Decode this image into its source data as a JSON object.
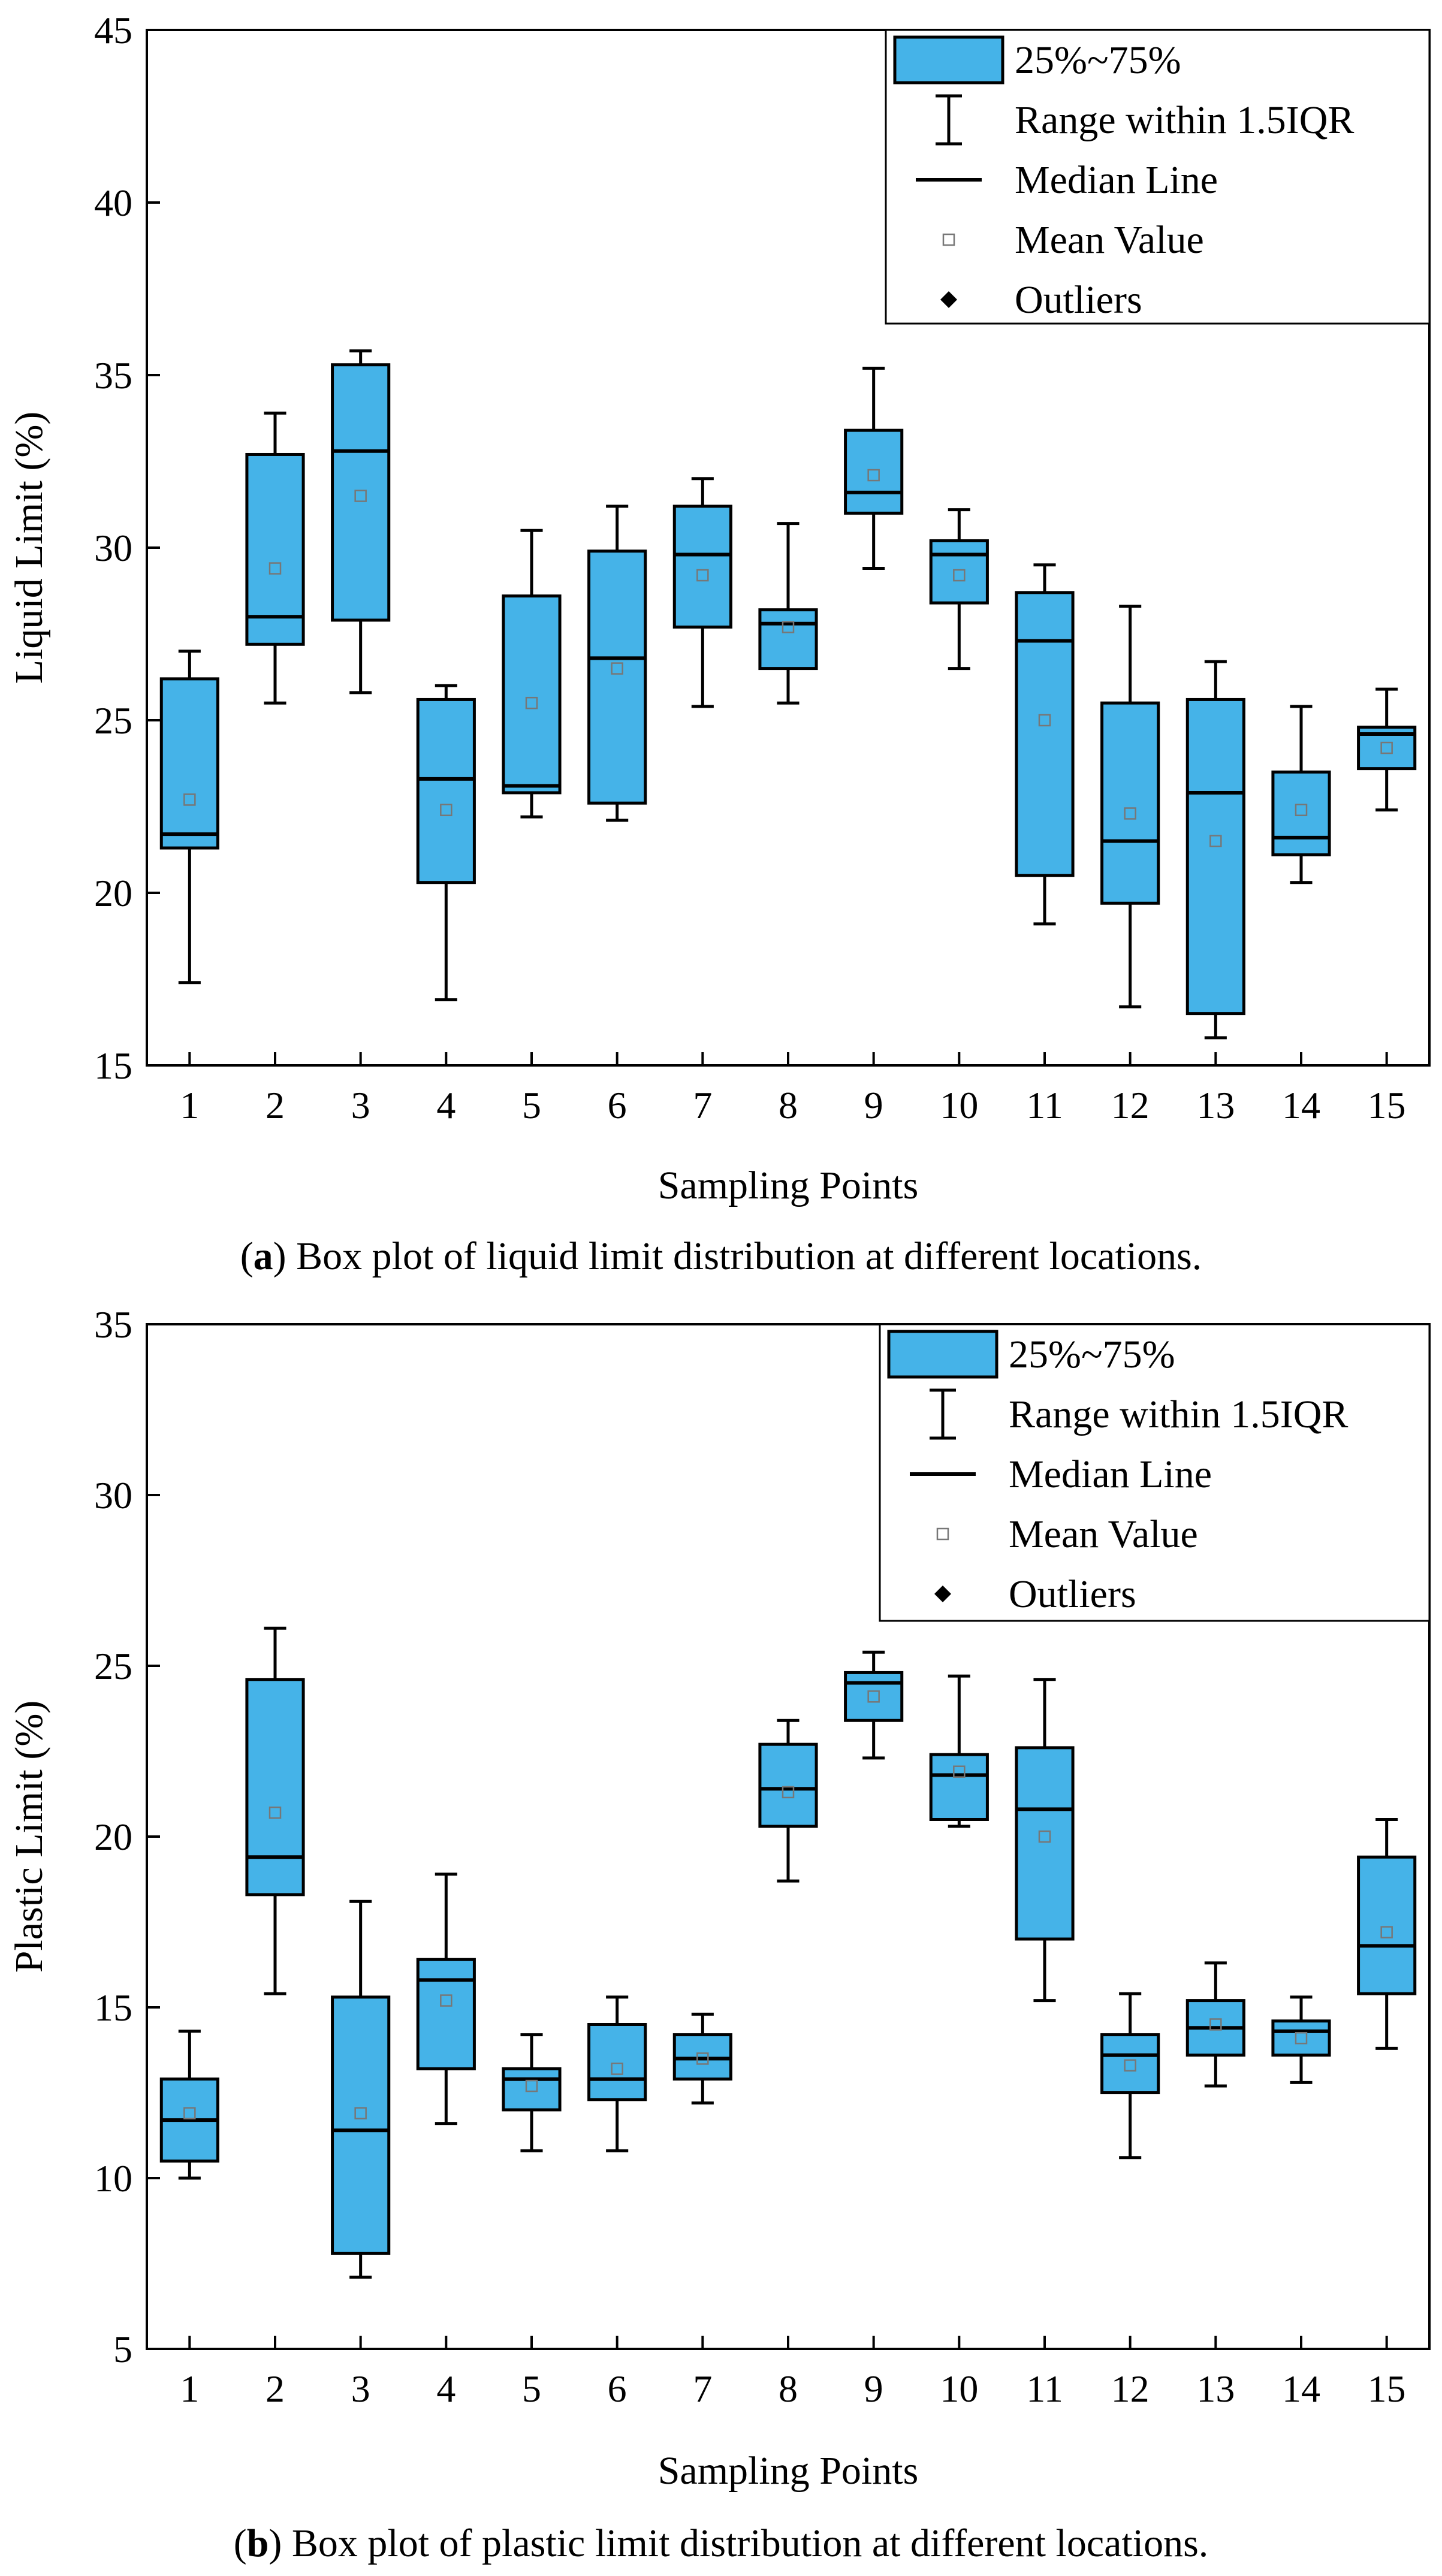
{
  "colors": {
    "box_fill": "#45b3e8",
    "stroke": "#000000",
    "mean_marker": "#777777",
    "background": "#ffffff"
  },
  "chart_data": [
    {
      "type": "box",
      "ylabel": "Liquid Limit (%)",
      "xlabel": "Sampling Points",
      "ylim": [
        15,
        45
      ],
      "yticks": [
        15,
        20,
        25,
        30,
        35,
        40,
        45
      ],
      "categories": [
        "1",
        "2",
        "3",
        "4",
        "5",
        "6",
        "7",
        "8",
        "9",
        "10",
        "11",
        "12",
        "13",
        "14",
        "15"
      ],
      "caption": {
        "open": "(",
        "letter": "a",
        "text": ") Box plot of liquid limit distribution at different locations."
      },
      "legend": {
        "position": "top-right",
        "items": [
          "25%~75%",
          "Range within 1.5IQR",
          "Median Line",
          "Mean Value",
          "Outliers"
        ]
      },
      "boxes": [
        {
          "min": 17.4,
          "q1": 21.3,
          "median": 21.7,
          "q3": 26.2,
          "max": 27.0,
          "mean": 22.7
        },
        {
          "min": 25.5,
          "q1": 27.2,
          "median": 28.0,
          "q3": 32.7,
          "max": 33.9,
          "mean": 29.4
        },
        {
          "min": 25.8,
          "q1": 27.9,
          "median": 32.8,
          "q3": 35.3,
          "max": 35.7,
          "mean": 31.5
        },
        {
          "min": 16.9,
          "q1": 20.3,
          "median": 23.3,
          "q3": 25.6,
          "max": 26.0,
          "mean": 22.4
        },
        {
          "min": 22.2,
          "q1": 22.9,
          "median": 23.1,
          "q3": 28.6,
          "max": 30.5,
          "mean": 25.5
        },
        {
          "min": 22.1,
          "q1": 22.6,
          "median": 26.8,
          "q3": 29.9,
          "max": 31.2,
          "mean": 26.5
        },
        {
          "min": 25.4,
          "q1": 27.7,
          "median": 29.8,
          "q3": 31.2,
          "max": 32.0,
          "mean": 29.2
        },
        {
          "min": 25.5,
          "q1": 26.5,
          "median": 27.8,
          "q3": 28.2,
          "max": 30.7,
          "mean": 27.7
        },
        {
          "min": 29.4,
          "q1": 31.0,
          "median": 31.6,
          "q3": 33.4,
          "max": 35.2,
          "mean": 32.1
        },
        {
          "min": 26.5,
          "q1": 28.4,
          "median": 29.8,
          "q3": 30.2,
          "max": 31.1,
          "mean": 29.2
        },
        {
          "min": 19.1,
          "q1": 20.5,
          "median": 27.3,
          "q3": 28.7,
          "max": 29.5,
          "mean": 25.0
        },
        {
          "min": 16.7,
          "q1": 19.7,
          "median": 21.5,
          "q3": 25.5,
          "max": 28.3,
          "mean": 22.3
        },
        {
          "min": 15.8,
          "q1": 16.5,
          "median": 22.9,
          "q3": 25.6,
          "max": 26.7,
          "mean": 21.5
        },
        {
          "min": 20.3,
          "q1": 21.1,
          "median": 21.6,
          "q3": 23.5,
          "max": 25.4,
          "mean": 22.4
        },
        {
          "min": 22.4,
          "q1": 23.6,
          "median": 24.6,
          "q3": 24.8,
          "max": 25.9,
          "mean": 24.2
        }
      ]
    },
    {
      "type": "box",
      "ylabel": "Plastic Limit (%)",
      "xlabel": "Sampling Points",
      "ylim": [
        5,
        35
      ],
      "yticks": [
        5,
        10,
        15,
        20,
        25,
        30,
        35
      ],
      "categories": [
        "1",
        "2",
        "3",
        "4",
        "5",
        "6",
        "7",
        "8",
        "9",
        "10",
        "11",
        "12",
        "13",
        "14",
        "15"
      ],
      "caption": {
        "open": "(",
        "letter": "b",
        "text": ") Box plot of plastic limit distribution at different locations."
      },
      "legend": {
        "position": "top-right",
        "items": [
          "25%~75%",
          "Range within 1.5IQR",
          "Median Line",
          "Mean Value",
          "Outliers"
        ]
      },
      "boxes": [
        {
          "min": 10.0,
          "q1": 10.5,
          "median": 11.7,
          "q3": 12.9,
          "max": 14.3,
          "mean": 11.9
        },
        {
          "min": 15.4,
          "q1": 18.3,
          "median": 19.4,
          "q3": 24.6,
          "max": 26.1,
          "mean": 20.7
        },
        {
          "min": 7.1,
          "q1": 7.8,
          "median": 11.4,
          "q3": 15.3,
          "max": 18.1,
          "mean": 11.9
        },
        {
          "min": 11.6,
          "q1": 13.2,
          "median": 15.8,
          "q3": 16.4,
          "max": 18.9,
          "mean": 15.2
        },
        {
          "min": 10.8,
          "q1": 12.0,
          "median": 12.9,
          "q3": 13.2,
          "max": 14.2,
          "mean": 12.7
        },
        {
          "min": 10.8,
          "q1": 12.3,
          "median": 12.9,
          "q3": 14.5,
          "max": 15.3,
          "mean": 13.2
        },
        {
          "min": 12.2,
          "q1": 12.9,
          "median": 13.5,
          "q3": 14.2,
          "max": 14.8,
          "mean": 13.5
        },
        {
          "min": 18.7,
          "q1": 20.3,
          "median": 21.4,
          "q3": 22.7,
          "max": 23.4,
          "mean": 21.3
        },
        {
          "min": 22.3,
          "q1": 23.4,
          "median": 24.5,
          "q3": 24.8,
          "max": 25.4,
          "mean": 24.1
        },
        {
          "min": 20.3,
          "q1": 20.5,
          "median": 21.8,
          "q3": 22.4,
          "max": 24.7,
          "mean": 21.9
        },
        {
          "min": 15.2,
          "q1": 17.0,
          "median": 20.8,
          "q3": 22.6,
          "max": 24.6,
          "mean": 20.0
        },
        {
          "min": 10.6,
          "q1": 12.5,
          "median": 13.6,
          "q3": 14.2,
          "max": 15.4,
          "mean": 13.3
        },
        {
          "min": 12.7,
          "q1": 13.6,
          "median": 14.4,
          "q3": 15.2,
          "max": 16.3,
          "mean": 14.5
        },
        {
          "min": 12.8,
          "q1": 13.6,
          "median": 14.3,
          "q3": 14.6,
          "max": 15.3,
          "mean": 14.1
        },
        {
          "min": 13.8,
          "q1": 15.4,
          "median": 16.8,
          "q3": 19.4,
          "max": 20.5,
          "mean": 17.2
        }
      ]
    }
  ]
}
